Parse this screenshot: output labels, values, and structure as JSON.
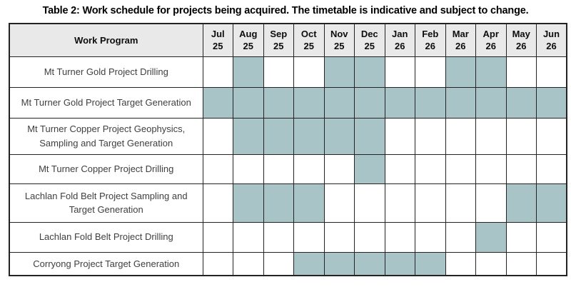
{
  "title": "Table 2: Work schedule for projects being acquired. The timetable is indicative and subject to change.",
  "table": {
    "header": {
      "work_program": "Work Program",
      "months": [
        {
          "month": "Jul",
          "year": "25"
        },
        {
          "month": "Aug",
          "year": "25"
        },
        {
          "month": "Sep",
          "year": "25"
        },
        {
          "month": "Oct",
          "year": "25"
        },
        {
          "month": "Nov",
          "year": "25"
        },
        {
          "month": "Dec",
          "year": "25"
        },
        {
          "month": "Jan",
          "year": "26"
        },
        {
          "month": "Feb",
          "year": "26"
        },
        {
          "month": "Mar",
          "year": "26"
        },
        {
          "month": "Apr",
          "year": "26"
        },
        {
          "month": "May",
          "year": "26"
        },
        {
          "month": "Jun",
          "year": "26"
        }
      ]
    },
    "rows": [
      {
        "label": "Mt Turner Gold Project Drilling",
        "shaded": [
          1,
          4,
          5,
          8,
          9
        ]
      },
      {
        "label": "Mt Turner Gold Project Target Generation",
        "shaded": [
          0,
          1,
          2,
          3,
          4,
          5,
          6,
          7,
          8,
          9,
          10,
          11
        ]
      },
      {
        "label": "Mt Turner Copper Project Geophysics, Sampling and Target Generation",
        "shaded": [
          1,
          2,
          3,
          4,
          5
        ]
      },
      {
        "label": "Mt Turner Copper Project Drilling",
        "shaded": [
          5
        ]
      },
      {
        "label": "Lachlan Fold Belt Project Sampling and Target Generation",
        "shaded": [
          1,
          2,
          3,
          10,
          11
        ]
      },
      {
        "label": "Lachlan Fold Belt Project Drilling",
        "shaded": [
          9
        ]
      },
      {
        "label": "Corryong Project Target Generation",
        "shaded": [
          3,
          4,
          5,
          6,
          7
        ]
      }
    ],
    "colors": {
      "shaded": "#a9c4c7",
      "header_bg": "#e9e9e9",
      "border": "#232323",
      "label_text": "#3f3f3f"
    }
  }
}
